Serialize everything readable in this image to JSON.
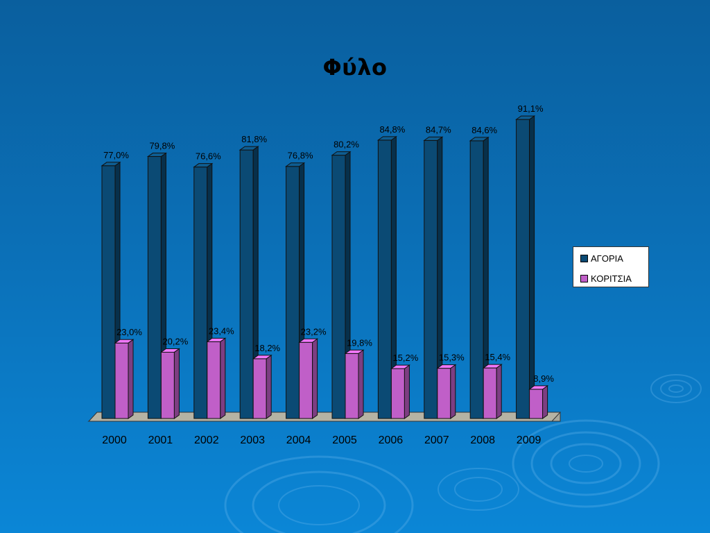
{
  "slide": {
    "title": "Φύλο"
  },
  "legend": {
    "items": [
      {
        "label": "ΑΓΟΡΙΑ",
        "color": "#0b4a74"
      },
      {
        "label": "ΚΟΡΙΤΣΙΑ",
        "color": "#c05fc8"
      }
    ]
  },
  "chart_data": {
    "type": "bar",
    "categories": [
      "2000",
      "2001",
      "2002",
      "2003",
      "2004",
      "2005",
      "2006",
      "2007",
      "2008",
      "2009"
    ],
    "series": [
      {
        "name": "ΑΓΟΡΙΑ",
        "color": "#0b4a74",
        "values": [
          77.0,
          79.8,
          76.6,
          81.8,
          76.8,
          80.2,
          84.8,
          84.7,
          84.6,
          91.1
        ],
        "labels": [
          "77,0%",
          "79,8%",
          "76,6%",
          "81,8%",
          "76,8%",
          "80,2%",
          "84,8%",
          "84,7%",
          "84,6%",
          "91,1%"
        ]
      },
      {
        "name": "ΚΟΡΙΤΣΙΑ",
        "color": "#c05fc8",
        "values": [
          23.0,
          20.2,
          23.4,
          18.2,
          23.2,
          19.8,
          15.2,
          15.3,
          15.4,
          8.9
        ],
        "labels": [
          "23,0%",
          "20,2%",
          "23,4%",
          "18,2%",
          "23,2%",
          "19,8%",
          "15,2%",
          "15,3%",
          "15,4%",
          "8,9%"
        ]
      }
    ],
    "title": "Φύλο",
    "xlabel": "",
    "ylabel": "",
    "ylim": [
      0,
      100
    ],
    "grid": false,
    "legend_position": "right"
  }
}
